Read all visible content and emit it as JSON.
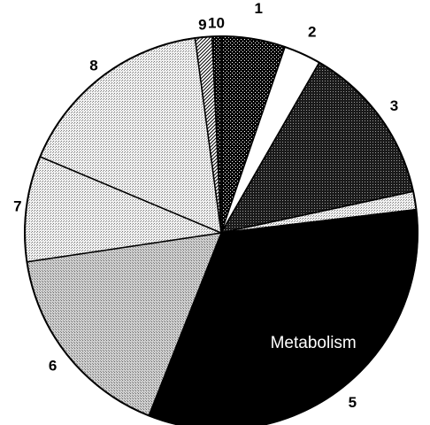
{
  "chart_data": {
    "type": "pie",
    "title": "",
    "start_angle_deg": 90,
    "direction": "clockwise",
    "categories": [
      "1",
      "2",
      "3",
      "4",
      "5",
      "6",
      "7",
      "8",
      "9",
      "10"
    ],
    "values": [
      5.7,
      3.3,
      14.4,
      1.6,
      35.6,
      18.0,
      9.4,
      17.9,
      1.5,
      0.8
    ],
    "unit": "percent of total (estimated)",
    "annotations": [
      {
        "slice": "5",
        "text": "Metabolism"
      }
    ],
    "fill_patterns": [
      "dotted-dark",
      "white",
      "dotted-dark-grey",
      "fine-dotted-light",
      "solid-black",
      "fine-dotted-mid",
      "fine-dotted-light",
      "fine-dotted-light",
      "diagonal-hatch",
      "dotted-dark"
    ],
    "colors": {
      "outline": "#000000",
      "background": "#ffffff",
      "inner_label": "#ffffff"
    }
  }
}
